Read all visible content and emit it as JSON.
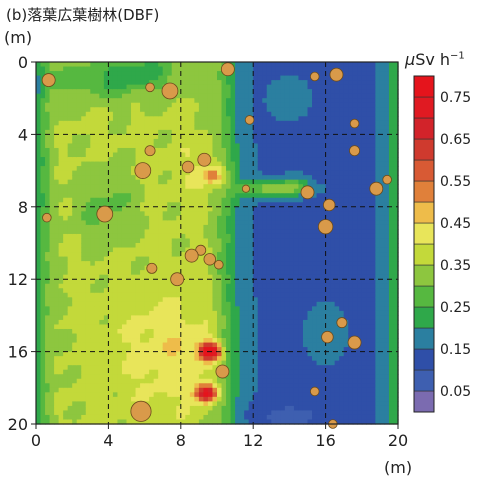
{
  "chart_data": {
    "type": "heatmap",
    "title": "(b)落葉広葉樹林(DBF)",
    "xlabel": "(m)",
    "ylabel": "(m)",
    "xlim": [
      0,
      20
    ],
    "ylim": [
      0,
      20
    ],
    "y_inverted": true,
    "x_ticks": [
      "0",
      "4",
      "8",
      "12",
      "16",
      "20"
    ],
    "y_ticks": [
      "0",
      "4",
      "8",
      "12",
      "16",
      "20"
    ],
    "x_tick_values": [
      0,
      4,
      8,
      12,
      16,
      20
    ],
    "y_tick_values": [
      0,
      4,
      8,
      12,
      16,
      20
    ],
    "grid": "dashed, every 4 m",
    "colorbar": {
      "unit_prefix": "μ",
      "unit_main": "Sv h",
      "unit_sup": "−1",
      "labels": [
        "0.75",
        "0.65",
        "0.55",
        "0.45",
        "0.35",
        "0.25",
        "0.15",
        "0.05"
      ],
      "label_values": [
        0.75,
        0.65,
        0.55,
        0.45,
        0.35,
        0.25,
        0.15,
        0.05
      ],
      "range": [
        0.0,
        0.8
      ],
      "colors": [
        "#7b6bb0",
        "#3e5fb0",
        "#2f4fa8",
        "#2b7fa0",
        "#2fa84a",
        "#56b840",
        "#8dc63f",
        "#c3d93a",
        "#e8e55a",
        "#eebc4a",
        "#e0803a",
        "#d85a34",
        "#cf3a2e",
        "#d2232a",
        "#e01a22",
        "#e5141c"
      ],
      "levels": [
        0.0,
        0.05,
        0.1,
        0.15,
        0.2,
        0.25,
        0.3,
        0.35,
        0.4,
        0.45,
        0.5,
        0.55,
        0.6,
        0.65,
        0.7,
        0.75
      ]
    },
    "hotspots": [
      {
        "x": 9.6,
        "y": 16.0,
        "value": 0.78
      },
      {
        "x": 9.4,
        "y": 18.3,
        "value": 0.7
      },
      {
        "x": 9.8,
        "y": 6.3,
        "value": 0.45
      },
      {
        "x": 14.3,
        "y": 6.8,
        "value": 0.4
      }
    ],
    "trees": [
      {
        "x": 0.7,
        "y": 1.0,
        "d": 0.45
      },
      {
        "x": 6.3,
        "y": 1.4,
        "d": 0.3
      },
      {
        "x": 7.4,
        "y": 1.6,
        "d": 0.55
      },
      {
        "x": 10.6,
        "y": 0.4,
        "d": 0.45
      },
      {
        "x": 15.4,
        "y": 0.8,
        "d": 0.3
      },
      {
        "x": 16.6,
        "y": 0.7,
        "d": 0.45
      },
      {
        "x": 11.8,
        "y": 3.2,
        "d": 0.3
      },
      {
        "x": 17.6,
        "y": 3.4,
        "d": 0.3
      },
      {
        "x": 6.3,
        "y": 4.9,
        "d": 0.35
      },
      {
        "x": 8.4,
        "y": 5.8,
        "d": 0.4
      },
      {
        "x": 9.3,
        "y": 5.4,
        "d": 0.45
      },
      {
        "x": 17.6,
        "y": 4.9,
        "d": 0.35
      },
      {
        "x": 5.9,
        "y": 6.0,
        "d": 0.55
      },
      {
        "x": 11.6,
        "y": 7.0,
        "d": 0.25
      },
      {
        "x": 15.0,
        "y": 7.2,
        "d": 0.45
      },
      {
        "x": 18.8,
        "y": 7.0,
        "d": 0.45
      },
      {
        "x": 19.4,
        "y": 6.5,
        "d": 0.3
      },
      {
        "x": 0.6,
        "y": 8.6,
        "d": 0.3
      },
      {
        "x": 3.8,
        "y": 8.4,
        "d": 0.55
      },
      {
        "x": 16.2,
        "y": 7.9,
        "d": 0.4
      },
      {
        "x": 16.0,
        "y": 9.1,
        "d": 0.5
      },
      {
        "x": 9.1,
        "y": 10.4,
        "d": 0.35
      },
      {
        "x": 8.6,
        "y": 10.7,
        "d": 0.45
      },
      {
        "x": 9.6,
        "y": 10.9,
        "d": 0.4
      },
      {
        "x": 6.4,
        "y": 11.4,
        "d": 0.35
      },
      {
        "x": 7.8,
        "y": 12.0,
        "d": 0.45
      },
      {
        "x": 10.1,
        "y": 11.2,
        "d": 0.3
      },
      {
        "x": 16.9,
        "y": 14.4,
        "d": 0.35
      },
      {
        "x": 16.1,
        "y": 15.2,
        "d": 0.4
      },
      {
        "x": 17.6,
        "y": 15.5,
        "d": 0.45
      },
      {
        "x": 10.3,
        "y": 17.1,
        "d": 0.45
      },
      {
        "x": 15.4,
        "y": 18.2,
        "d": 0.3
      },
      {
        "x": 5.8,
        "y": 19.3,
        "d": 0.7
      },
      {
        "x": 16.4,
        "y": 20.0,
        "d": 0.3
      }
    ]
  },
  "labels": {
    "title": "(b)落葉広葉樹林(DBF)",
    "y_unit": "(m)",
    "x_unit": "(m)",
    "cb_prefix": "μ",
    "cb_main": "Sv h",
    "cb_sup": "−1"
  }
}
